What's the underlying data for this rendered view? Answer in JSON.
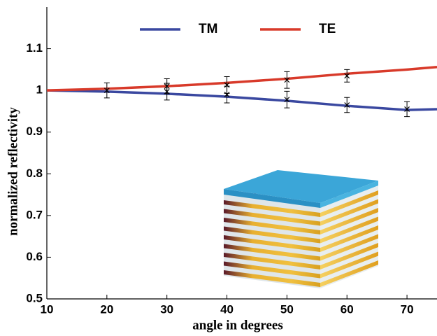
{
  "chart_data": {
    "type": "line",
    "xlabel": "angle in degrees",
    "ylabel": "normalized reflectivity",
    "x": [
      10,
      20,
      30,
      40,
      50,
      60,
      70,
      75
    ],
    "series": [
      {
        "name": "TM",
        "color": "#3a48a0",
        "values": [
          1.0,
          0.997,
          0.992,
          0.985,
          0.975,
          0.963,
          0.953,
          0.955
        ]
      },
      {
        "name": "TE",
        "color": "#d83a2a",
        "values": [
          1.0,
          1.004,
          1.01,
          1.018,
          1.028,
          1.04,
          1.05,
          1.056
        ]
      }
    ],
    "measurements": [
      {
        "x": [
          20,
          30,
          40,
          50,
          60
        ],
        "values": [
          1.0,
          1.01,
          1.013,
          1.025,
          1.035
        ],
        "errors": [
          0.018,
          0.018,
          0.02,
          0.02,
          0.015
        ],
        "color": "#000000"
      },
      {
        "x": [
          30,
          40,
          50,
          60,
          70
        ],
        "values": [
          0.997,
          0.99,
          0.978,
          0.965,
          0.955
        ],
        "errors": [
          0.02,
          0.02,
          0.02,
          0.018,
          0.018
        ],
        "color": "#000000"
      }
    ],
    "xlim": [
      10,
      75
    ],
    "ylim": [
      0.5,
      1.2
    ],
    "xticks": [
      10,
      20,
      30,
      40,
      50,
      60,
      70
    ],
    "yticks": [
      0.5,
      0.6,
      0.7,
      0.8,
      0.9,
      1,
      1.1
    ],
    "legend": "top"
  }
}
